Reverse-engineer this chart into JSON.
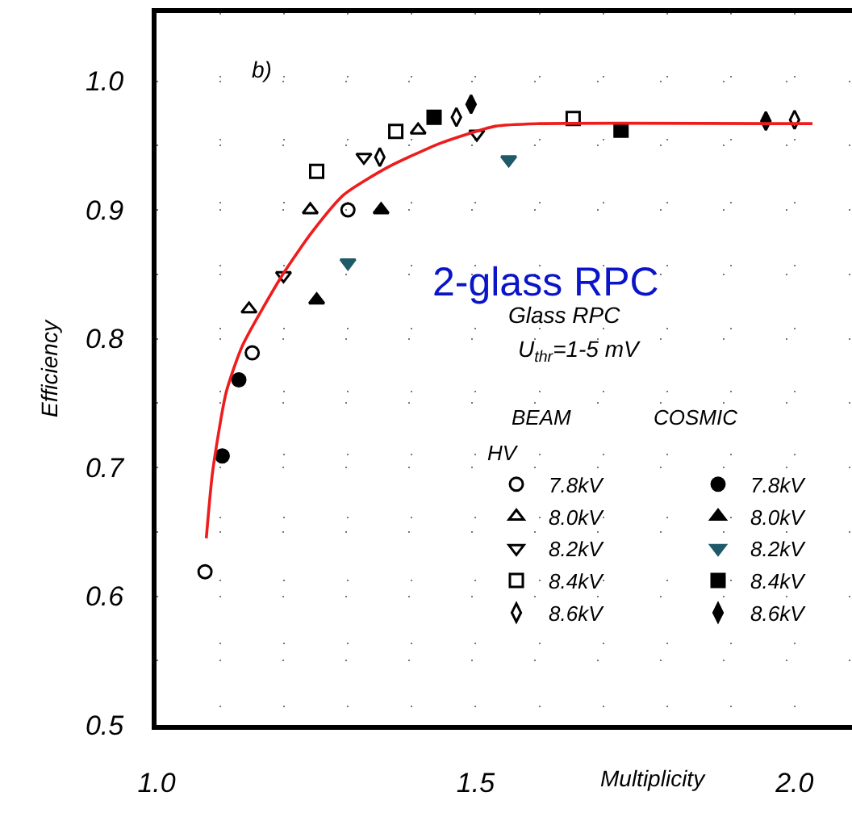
{
  "chart_data": {
    "type": "scatter",
    "xlabel": "Multiplicity",
    "ylabel": "Efficiency",
    "legend_title": "HV",
    "xlim": [
      1.0,
      2.09
    ],
    "xticks": [
      {
        "value": 1.0,
        "label": "1.0"
      },
      {
        "value": 1.1,
        "label": null
      },
      {
        "value": 1.2,
        "label": null
      },
      {
        "value": 1.3,
        "label": null
      },
      {
        "value": 1.4,
        "label": null
      },
      1.5,
      {
        "value": 1.6,
        "label": null
      },
      {
        "value": 1.7,
        "label": null
      },
      {
        "value": 1.8,
        "label": null
      },
      {
        "value": 1.9,
        "label": null
      },
      {
        "value": 2.0,
        "label": "2.0"
      }
    ],
    "ylim": [
      0.5,
      1.053
    ],
    "yticks": [
      0.5,
      {
        "value": 0.55,
        "label": null
      },
      0.6,
      {
        "value": 0.65,
        "label": null
      },
      0.7,
      {
        "value": 0.75,
        "label": null
      },
      0.8,
      {
        "value": 0.85,
        "label": null
      },
      0.9,
      {
        "value": 0.95,
        "label": null
      },
      {
        "value": 1.0,
        "label": "1.0"
      }
    ],
    "grid": true,
    "legend": "right",
    "annotations": [
      "b)",
      "2-glass RPC",
      "Glass RPC",
      "U$_{thr}$=1-5 mV",
      "BEAM",
      "COSMIC"
    ],
    "series": [
      {
        "name": "7.8kV",
        "color": "#000000",
        "marker": "circle-open",
        "x": [
          1.076,
          1.15,
          1.3
        ],
        "values": [
          0.619,
          0.789,
          0.9
        ]
      },
      {
        "name": "7.8kV",
        "color": "#000000",
        "marker": "circle",
        "x": [
          1.103,
          1.129
        ],
        "values": [
          0.709,
          0.768
        ]
      },
      {
        "name": "8.0kV",
        "color": "#000000",
        "marker": "triangle-up-open",
        "x": [
          1.145,
          1.241,
          1.41
        ],
        "values": [
          0.823,
          0.9,
          0.962
        ]
      },
      {
        "name": "8.0kV",
        "color": "#000000",
        "marker": "triangle-up",
        "x": [
          1.251,
          1.352
        ],
        "values": [
          0.83,
          0.9
        ]
      },
      {
        "name": "8.2kV",
        "color": "#000000",
        "marker": "triangle-down-open",
        "x": [
          1.199,
          1.325,
          1.502
        ],
        "values": [
          0.849,
          0.941,
          0.959
        ]
      },
      {
        "name": "8.2kV",
        "color": "#1f5a6a",
        "marker": "triangle-down",
        "x": [
          1.3,
          1.552
        ],
        "values": [
          0.859,
          0.939
        ]
      },
      {
        "name": "8.4kV",
        "color": "#000000",
        "marker": "square-open",
        "x": [
          1.251,
          1.375,
          1.653
        ],
        "values": [
          0.93,
          0.961,
          0.971
        ]
      },
      {
        "name": "8.4kV",
        "color": "#000000",
        "marker": "square",
        "x": [
          1.435,
          1.728
        ],
        "values": [
          0.972,
          0.962
        ]
      },
      {
        "name": "8.6kV",
        "color": "#000000",
        "marker": "diamond-tall-open",
        "x": [
          1.35,
          1.47,
          2.0
        ],
        "values": [
          0.941,
          0.972,
          0.97
        ]
      },
      {
        "name": "8.6kV",
        "color": "#000000",
        "marker": "diamond-tall",
        "x": [
          1.493,
          1.955
        ],
        "values": [
          0.982,
          0.969
        ]
      },
      {
        "type": "line",
        "color": "#ee1c1c",
        "marker": "none",
        "line_style": "solid",
        "x": [
          1.078,
          1.088,
          1.109,
          1.135,
          1.198,
          1.244,
          1.294,
          1.362,
          1.446,
          1.531,
          1.6,
          2.028
        ],
        "values": [
          0.645,
          0.697,
          0.758,
          0.795,
          0.85,
          0.883,
          0.912,
          0.933,
          0.952,
          0.965,
          0.967,
          0.967
        ]
      }
    ]
  }
}
